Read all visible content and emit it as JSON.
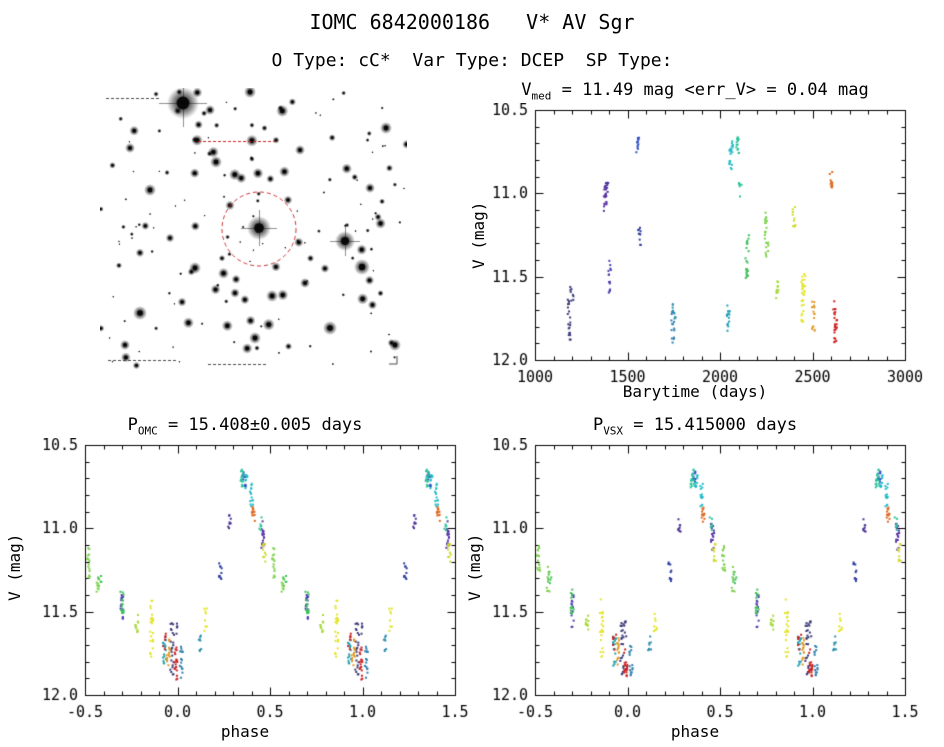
{
  "header": {
    "title": "IOMC 6842000186   V* AV Sgr",
    "subtitle": "O Type: cC*  Var Type: DCEP  SP Type:"
  },
  "finder": {
    "circle_color": "#cc3333",
    "annotation_color": "#cc2222",
    "star_color": "#0a0a0a",
    "background": "#ffffff"
  },
  "chart_data": {
    "type": "scatter",
    "legend": "points colored by observation epoch (early=dark blue/purple, late=red)",
    "plots": [
      {
        "id": "plot-time",
        "mode": "time",
        "title": {
          "prefix": "V",
          "sub": "med",
          "rest": " = 11.49 mag <err_V> = 0.04 mag"
        },
        "xlabel": "Barytime (days)",
        "ylabel": "V (mag)",
        "xlim": [
          1000,
          3000
        ],
        "ylim": [
          10.5,
          12.0
        ],
        "xticks": [
          1000,
          1500,
          2000,
          2500,
          3000
        ],
        "xtick_labels": [
          "1000",
          "1500",
          "2000",
          "2500",
          "3000"
        ],
        "xminor": 100,
        "yticks": [
          10.5,
          11.0,
          11.5,
          12.0
        ],
        "ytick_labels": [
          "10.5",
          "11.0",
          "11.5",
          "12.0"
        ],
        "yminor": 0.1
      },
      {
        "id": "plot-omc",
        "mode": "phase",
        "title": {
          "prefix": "P",
          "sub": "OMC",
          "rest": " = 15.408±0.005 days"
        },
        "xlabel": "phase",
        "ylabel": "V (mag)",
        "xlim": [
          -0.5,
          1.5
        ],
        "ylim": [
          10.5,
          12.0
        ],
        "xticks": [
          -0.5,
          0.0,
          0.5,
          1.0,
          1.5
        ],
        "xtick_labels": [
          "-0.5",
          "0.0",
          "0.5",
          "1.0",
          "1.5"
        ],
        "xminor": 0.1,
        "yticks": [
          10.5,
          11.0,
          11.5,
          12.0
        ],
        "ytick_labels": [
          "10.5",
          "11.0",
          "11.5",
          "12.0"
        ],
        "yminor": 0.1
      },
      {
        "id": "plot-vsx",
        "mode": "phase",
        "title": {
          "prefix": "P",
          "sub": "VSX",
          "rest": " = 15.415000 days"
        },
        "xlabel": "phase",
        "ylabel": "V (mag)",
        "xlim": [
          -0.5,
          1.5
        ],
        "ylim": [
          10.5,
          12.0
        ],
        "xticks": [
          -0.5,
          0.0,
          0.5,
          1.0,
          1.5
        ],
        "xtick_labels": [
          "-0.5",
          "0.0",
          "0.5",
          "1.0",
          "1.5"
        ],
        "xminor": 0.1,
        "yticks": [
          10.5,
          11.0,
          11.5,
          12.0
        ],
        "ytick_labels": [
          "10.5",
          "11.0",
          "11.5",
          "12.0"
        ],
        "yminor": 0.1
      }
    ],
    "clusters": [
      {
        "t": 1185,
        "phase": 0.97,
        "mag": 11.72,
        "spread": 0.16,
        "color": "#3c3c78",
        "n": 22
      },
      {
        "t": 1200,
        "phase": 0.99,
        "mag": 11.6,
        "spread": 0.05,
        "color": "#3c3c78",
        "n": 6
      },
      {
        "t": 1380,
        "phase": 0.46,
        "mag": 11.04,
        "spread": 0.09,
        "color": "#5b35a8",
        "n": 18
      },
      {
        "t": 1388,
        "phase": 0.28,
        "mag": 10.97,
        "spread": 0.05,
        "color": "#4a2f96",
        "n": 8
      },
      {
        "t": 1405,
        "phase": 0.7,
        "mag": 11.5,
        "spread": 0.1,
        "color": "#4a3fae",
        "n": 14
      },
      {
        "t": 1555,
        "phase": 0.36,
        "mag": 10.71,
        "spread": 0.05,
        "color": "#3050c8",
        "n": 12
      },
      {
        "t": 1565,
        "phase": 0.23,
        "mag": 11.27,
        "spread": 0.07,
        "color": "#2e3d9e",
        "n": 10
      },
      {
        "t": 1745,
        "phase": 0.02,
        "mag": 11.8,
        "spread": 0.1,
        "color": "#2f7fae",
        "n": 15
      },
      {
        "t": 1752,
        "phase": 0.12,
        "mag": 11.7,
        "spread": 0.06,
        "color": "#2f8fae",
        "n": 8
      },
      {
        "t": 2045,
        "phase": 0.93,
        "mag": 11.74,
        "spread": 0.09,
        "color": "#1fa0b4",
        "n": 15
      },
      {
        "t": 2058,
        "phase": 0.4,
        "mag": 10.8,
        "spread": 0.07,
        "color": "#25bcc8",
        "n": 14
      },
      {
        "t": 2062,
        "phase": 0.37,
        "mag": 10.72,
        "spread": 0.04,
        "color": "#25bcc8",
        "n": 8
      },
      {
        "t": 2095,
        "phase": 0.35,
        "mag": 10.7,
        "spread": 0.06,
        "color": "#2cc49a",
        "n": 15
      },
      {
        "t": 2110,
        "phase": 0.45,
        "mag": 10.98,
        "spread": 0.05,
        "color": "#2cc49a",
        "n": 6
      },
      {
        "t": 2145,
        "phase": 0.7,
        "mag": 11.44,
        "spread": 0.08,
        "color": "#3fbf5a",
        "n": 14
      },
      {
        "t": 2150,
        "phase": 0.58,
        "mag": 11.3,
        "spread": 0.05,
        "color": "#3fbf5a",
        "n": 8
      },
      {
        "t": 2250,
        "phase": 0.52,
        "mag": 11.2,
        "spread": 0.1,
        "color": "#7ed24e",
        "n": 15
      },
      {
        "t": 2255,
        "phase": 0.57,
        "mag": 11.3,
        "spread": 0.08,
        "color": "#7ed24e",
        "n": 8
      },
      {
        "t": 2310,
        "phase": 0.78,
        "mag": 11.57,
        "spread": 0.06,
        "color": "#a6d838",
        "n": 10
      },
      {
        "t": 2400,
        "phase": 0.47,
        "mag": 11.14,
        "spread": 0.06,
        "color": "#cfd92c",
        "n": 10
      },
      {
        "t": 2448,
        "phase": 0.86,
        "mag": 11.6,
        "spread": 0.18,
        "color": "#e3e328",
        "n": 22
      },
      {
        "t": 2455,
        "phase": 0.15,
        "mag": 11.55,
        "spread": 0.07,
        "color": "#e3e328",
        "n": 8
      },
      {
        "t": 2505,
        "phase": 0.95,
        "mag": 11.74,
        "spread": 0.09,
        "color": "#e29a26",
        "n": 15
      },
      {
        "t": 2600,
        "phase": 0.41,
        "mag": 10.92,
        "spread": 0.05,
        "color": "#dd6a22",
        "n": 12
      },
      {
        "t": 2615,
        "phase": 0.93,
        "mag": 11.68,
        "spread": 0.05,
        "color": "#cc2121",
        "n": 6
      },
      {
        "t": 2625,
        "phase": 0.99,
        "mag": 11.8,
        "spread": 0.11,
        "color": "#cc2121",
        "n": 18
      }
    ]
  }
}
